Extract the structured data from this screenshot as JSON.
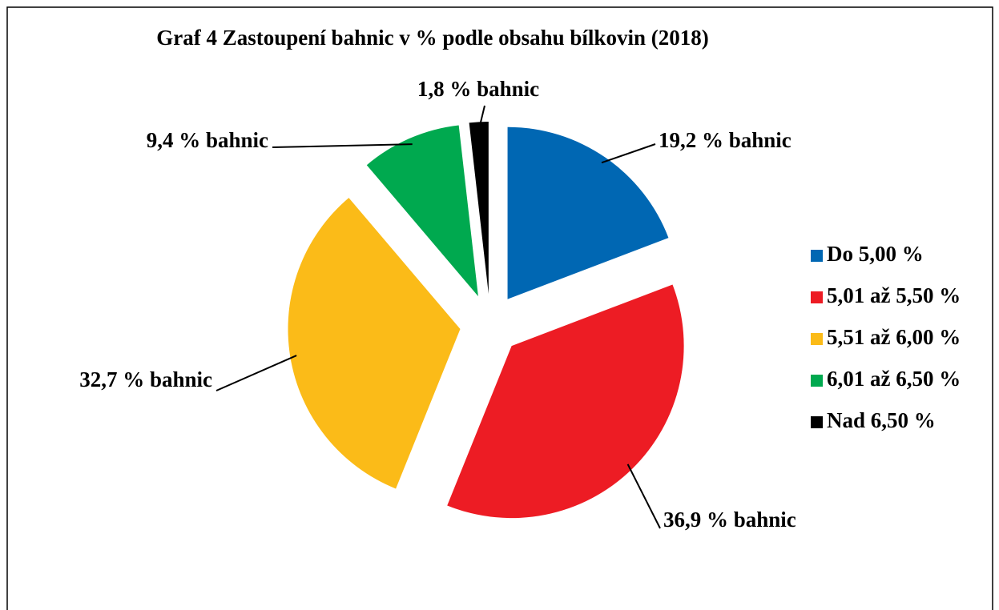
{
  "chart_data": {
    "type": "pie",
    "title": "Graf 4 Zastoupení bahnic v % podle obsahu bílkovin (2018)",
    "categories": [
      "Do 5,00 %",
      "5,01 až 5,50 %",
      "5,51 až 6,00 %",
      "6,01 až 6,50 %",
      "Nad 6,50 %"
    ],
    "values": [
      19.2,
      36.9,
      32.7,
      9.4,
      1.8
    ],
    "value_labels": [
      "19,2 % bahnic",
      "36,9 % bahnic",
      "32,7 % bahnic",
      "9,4 % bahnic",
      "1,8 % bahnic"
    ],
    "colors": [
      "#0067b3",
      "#ed1c24",
      "#fbbb18",
      "#00a94f",
      "#000000"
    ],
    "legend": "right"
  }
}
